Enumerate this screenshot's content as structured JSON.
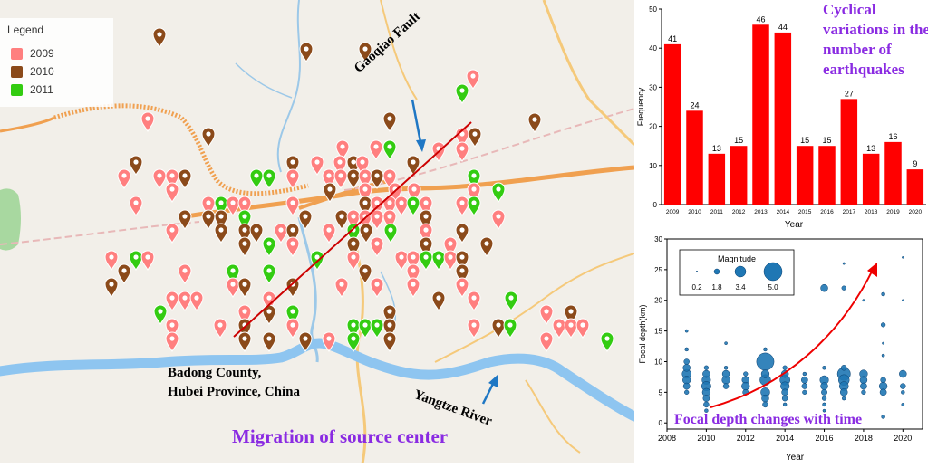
{
  "map": {
    "legend": {
      "title": "Legend",
      "items": [
        {
          "label": "2009",
          "color": "#ff7f7f"
        },
        {
          "label": "2010",
          "color": "#8b4a1a"
        },
        {
          "label": "2011",
          "color": "#33cc11"
        }
      ]
    },
    "labels": {
      "fault": "Gaoqiao Fault",
      "county_line1": "Badong County,",
      "county_line2": "Hubei Province, China",
      "river": "Yangtze River",
      "migration": "Migration of source center"
    },
    "colors": {
      "red_pin": "#ff7f7f",
      "brown_pin": "#8b4a1a",
      "green_pin": "#33cc11",
      "river": "#8ec5f0",
      "road": "#f0a050"
    }
  },
  "chart_data": [
    {
      "type": "bar",
      "title_lines": [
        "Cyclical",
        "variations in the",
        "number of",
        "earthquakes"
      ],
      "categories": [
        "2009",
        "2010",
        "2011",
        "2012",
        "2013",
        "2014",
        "2015",
        "2016",
        "2017",
        "2018",
        "2019",
        "2020"
      ],
      "values": [
        41,
        24,
        13,
        15,
        46,
        44,
        15,
        15,
        27,
        13,
        16,
        9
      ],
      "value_labels": [
        "41",
        "24",
        "13",
        "15",
        "46",
        "44",
        "15",
        "15",
        "27",
        "13",
        "16",
        "9"
      ],
      "xlabel": "Year",
      "ylabel": "Frequency",
      "ylim": [
        0,
        50
      ],
      "yticks": [
        "0",
        "10",
        "20",
        "30",
        "40",
        "50"
      ],
      "color": "#ff0000"
    },
    {
      "type": "scatter",
      "title": "Focal depth changes with time",
      "xlabel": "Year",
      "ylabel": "Focal depth(km)",
      "xlim": [
        2008,
        2021
      ],
      "ylim": [
        -1,
        30
      ],
      "xticks": [
        "2008",
        "2010",
        "2012",
        "2014",
        "2016",
        "2018",
        "2020"
      ],
      "yticks": [
        "0",
        "5",
        "10",
        "15",
        "20",
        "25",
        "30"
      ],
      "legend": {
        "title": "Magnitude",
        "entries": [
          "0.2",
          "1.8",
          "3.4",
          "5.0"
        ]
      },
      "color": "#1f77b4",
      "points": [
        [
          2009,
          8,
          2.5
        ],
        [
          2009,
          7,
          2.2
        ],
        [
          2009,
          9,
          2.0
        ],
        [
          2009,
          6,
          1.8
        ],
        [
          2009,
          10,
          1.5
        ],
        [
          2009,
          5,
          1.2
        ],
        [
          2009,
          12,
          1.0
        ],
        [
          2009,
          15,
          0.8
        ],
        [
          2010,
          7,
          2.4
        ],
        [
          2010,
          6,
          2.6
        ],
        [
          2010,
          8,
          2.0
        ],
        [
          2010,
          5,
          2.2
        ],
        [
          2010,
          4,
          1.8
        ],
        [
          2010,
          3,
          1.5
        ],
        [
          2010,
          9,
          1.2
        ],
        [
          2010,
          2,
          1.0
        ],
        [
          2011,
          7,
          2.2
        ],
        [
          2011,
          8,
          2.0
        ],
        [
          2011,
          6,
          1.5
        ],
        [
          2011,
          9,
          1.0
        ],
        [
          2011,
          13,
          0.8
        ],
        [
          2012,
          7,
          2.0
        ],
        [
          2012,
          6,
          2.2
        ],
        [
          2012,
          5,
          1.6
        ],
        [
          2012,
          8,
          1.2
        ],
        [
          2013,
          10,
          4.8
        ],
        [
          2013,
          7,
          3.0
        ],
        [
          2013,
          5,
          2.5
        ],
        [
          2013,
          4,
          2.0
        ],
        [
          2013,
          8,
          2.2
        ],
        [
          2013,
          3,
          1.5
        ],
        [
          2013,
          12,
          1.0
        ],
        [
          2014,
          7,
          2.8
        ],
        [
          2014,
          6,
          2.4
        ],
        [
          2014,
          8,
          2.0
        ],
        [
          2014,
          5,
          1.8
        ],
        [
          2014,
          4,
          1.5
        ],
        [
          2014,
          9,
          1.2
        ],
        [
          2014,
          3,
          1.0
        ],
        [
          2015,
          7,
          1.8
        ],
        [
          2015,
          6,
          1.5
        ],
        [
          2015,
          5,
          1.2
        ],
        [
          2015,
          8,
          1.0
        ],
        [
          2016,
          7,
          2.4
        ],
        [
          2016,
          6,
          2.0
        ],
        [
          2016,
          5,
          1.6
        ],
        [
          2016,
          22,
          2.0
        ],
        [
          2016,
          4,
          1.2
        ],
        [
          2016,
          3,
          1.0
        ],
        [
          2016,
          9,
          1.0
        ],
        [
          2016,
          2,
          0.8
        ],
        [
          2017,
          8,
          3.6
        ],
        [
          2017,
          7,
          3.0
        ],
        [
          2017,
          6,
          2.5
        ],
        [
          2017,
          5,
          2.0
        ],
        [
          2017,
          22,
          1.2
        ],
        [
          2017,
          26,
          0.6
        ],
        [
          2017,
          9,
          1.5
        ],
        [
          2017,
          4,
          1.0
        ],
        [
          2018,
          8,
          2.2
        ],
        [
          2018,
          7,
          2.0
        ],
        [
          2018,
          6,
          1.8
        ],
        [
          2018,
          5,
          1.2
        ],
        [
          2018,
          20,
          0.6
        ],
        [
          2019,
          6,
          2.2
        ],
        [
          2019,
          5,
          1.8
        ],
        [
          2019,
          7,
          1.5
        ],
        [
          2019,
          16,
          1.2
        ],
        [
          2019,
          21,
          1.0
        ],
        [
          2019,
          1,
          1.0
        ],
        [
          2019,
          11,
          0.8
        ],
        [
          2019,
          13,
          0.6
        ],
        [
          2020,
          8,
          2.0
        ],
        [
          2020,
          6,
          1.5
        ],
        [
          2020,
          5,
          1.0
        ],
        [
          2020,
          3,
          0.8
        ],
        [
          2020,
          20,
          0.5
        ],
        [
          2020,
          27,
          0.5
        ]
      ]
    }
  ]
}
